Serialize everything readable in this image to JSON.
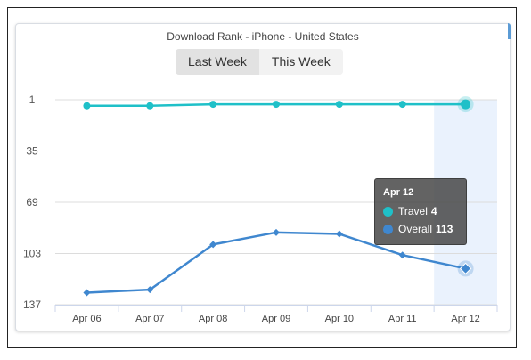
{
  "title": "Download Rank - iPhone - United States",
  "toggle": {
    "options": [
      "Last Week",
      "This Week"
    ],
    "selected": "Last Week"
  },
  "colors": {
    "travel": "#1fc0c8",
    "overall": "#3f87cf",
    "highlight_band": "#eaf2fd"
  },
  "chart_data": {
    "type": "line",
    "title": "Download Rank - iPhone - United States",
    "categories": [
      "Apr 06",
      "Apr 07",
      "Apr 08",
      "Apr 09",
      "Apr 10",
      "Apr 11",
      "Apr 12"
    ],
    "y_ticks": [
      1,
      35,
      69,
      103,
      137
    ],
    "ylim": [
      1,
      137
    ],
    "y_reversed": true,
    "grid": true,
    "series": [
      {
        "name": "Travel",
        "marker": "circle",
        "values": [
          5,
          5,
          4,
          4,
          4,
          4,
          4
        ]
      },
      {
        "name": "Overall",
        "marker": "diamond",
        "values": [
          129,
          127,
          97,
          89,
          90,
          104,
          113
        ]
      }
    ],
    "highlighted_category": "Apr 12"
  },
  "tooltip": {
    "date": "Apr 12",
    "rows": [
      {
        "name": "Travel",
        "value": "4"
      },
      {
        "name": "Overall",
        "value": "113"
      }
    ]
  }
}
